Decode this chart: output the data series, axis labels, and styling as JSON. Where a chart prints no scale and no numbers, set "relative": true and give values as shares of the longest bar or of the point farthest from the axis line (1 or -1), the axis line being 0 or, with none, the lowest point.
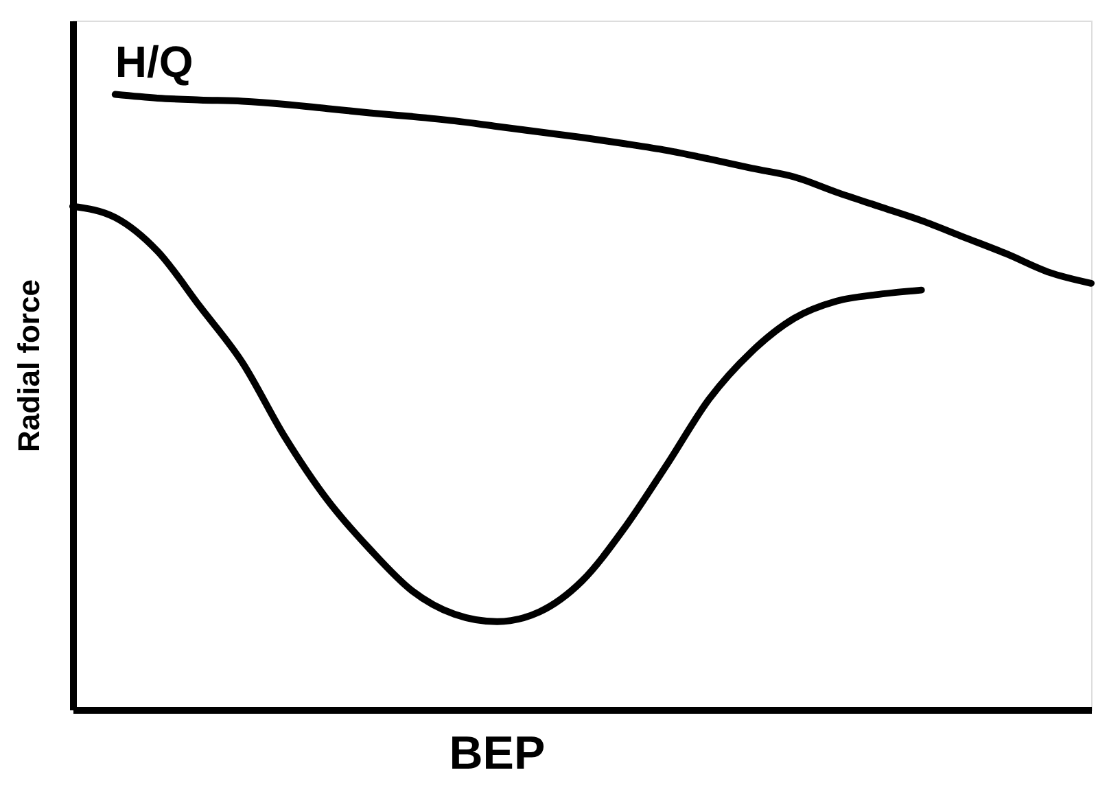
{
  "chart_data": {
    "type": "line",
    "relative": true,
    "ylabel": "Radial force",
    "legend": false,
    "marker": "none",
    "line_style": "solid",
    "annotations": [
      "BEP"
    ],
    "tick_labels": false,
    "categories": [
      null,
      null,
      null,
      null,
      null,
      null,
      null,
      null,
      null,
      null,
      null,
      null,
      null,
      null,
      null,
      null,
      null,
      null,
      null,
      null,
      null,
      null,
      null,
      null,
      null
    ],
    "series": [
      {
        "name": "H/Q",
        "color": "#000000",
        "values": [
          null,
          1.0,
          0.994,
          0.991,
          0.989,
          0.984,
          0.977,
          0.97,
          0.964,
          0.957,
          0.948,
          0.939,
          0.93,
          0.92,
          0.909,
          0.895,
          0.88,
          0.866,
          0.841,
          0.818,
          0.795,
          0.768,
          0.741,
          0.711,
          0.693
        ]
      },
      {
        "color": "#000000",
        "values": [
          0.818,
          0.8,
          0.745,
          0.655,
          0.564,
          0.443,
          0.341,
          0.261,
          0.193,
          0.155,
          0.143,
          0.159,
          0.209,
          0.295,
          0.398,
          0.505,
          0.582,
          0.636,
          0.664,
          0.675,
          0.682,
          null,
          null,
          null,
          null
        ]
      }
    ]
  }
}
